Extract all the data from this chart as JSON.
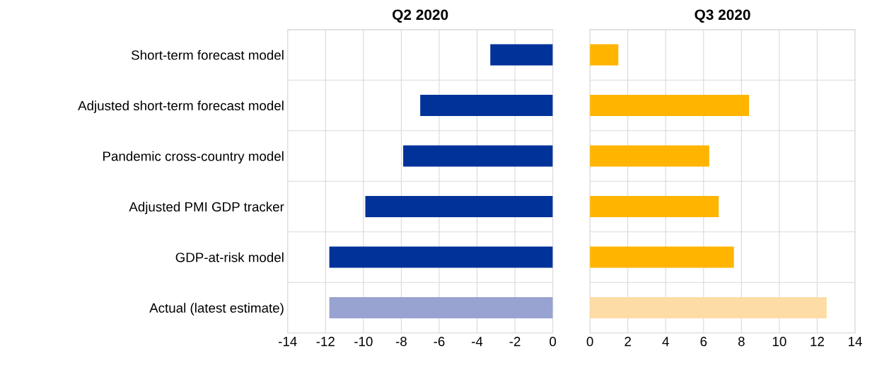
{
  "chart_data": [
    {
      "type": "bar",
      "orientation": "horizontal",
      "title": "Q2 2020",
      "categories": [
        "Short-term forecast model",
        "Adjusted short-term forecast model",
        "Pandemic cross-country model",
        "Adjusted PMI GDP tracker",
        "GDP-at-risk model",
        "Actual (latest estimate)"
      ],
      "values": [
        -3.3,
        -7.0,
        -7.9,
        -9.9,
        -11.8,
        -11.8
      ],
      "colors": [
        "#003299",
        "#003299",
        "#003299",
        "#003299",
        "#003299",
        "#99a3d1"
      ],
      "xlim": [
        -14,
        0
      ],
      "xticks": [
        -14,
        -12,
        -10,
        -8,
        -6,
        -4,
        -2,
        0
      ],
      "grid": true
    },
    {
      "type": "bar",
      "orientation": "horizontal",
      "title": "Q3 2020",
      "categories": [
        null,
        null,
        null,
        null,
        null,
        null
      ],
      "values": [
        1.5,
        8.4,
        6.3,
        6.8,
        7.6,
        12.5
      ],
      "colors": [
        "#ffb400",
        "#ffb400",
        "#ffb400",
        "#ffb400",
        "#ffb400",
        "#fddca5"
      ],
      "xlim": [
        0,
        14
      ],
      "xticks": [
        0,
        2,
        4,
        6,
        8,
        10,
        12,
        14
      ],
      "grid": true,
      "tick_labels": "x"
    }
  ]
}
